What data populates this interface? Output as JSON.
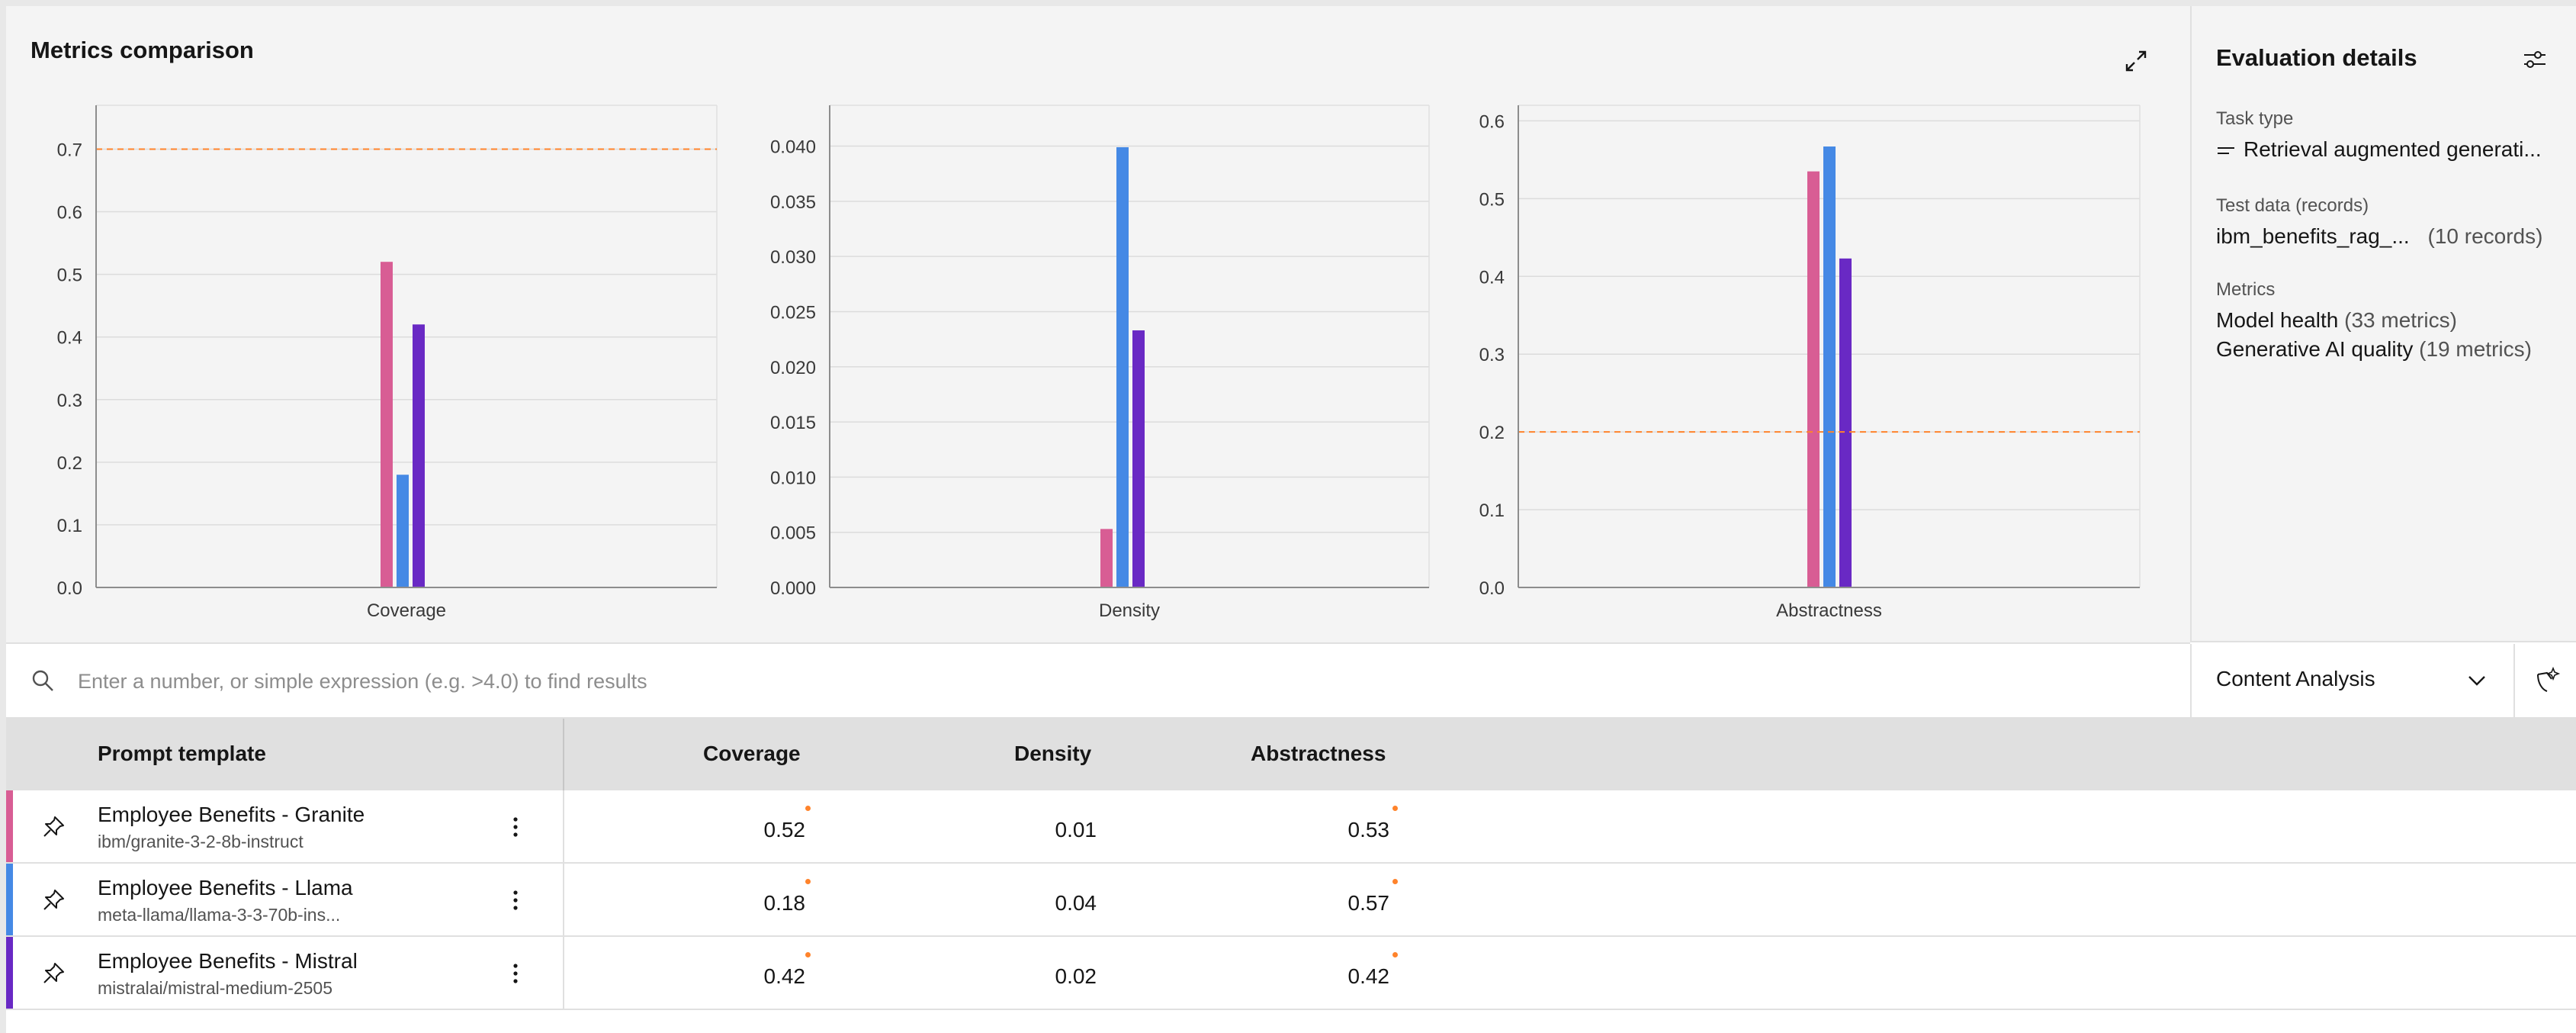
{
  "metrics_panel": {
    "title": "Metrics comparison"
  },
  "chart_data": [
    {
      "type": "bar",
      "categories": [
        "Coverage"
      ],
      "series": [
        {
          "name": "Employee Benefits - Granite",
          "values": [
            0.52
          ],
          "color": "#d85d94"
        },
        {
          "name": "Employee Benefits - Llama",
          "values": [
            0.18
          ],
          "color": "#4589e5"
        },
        {
          "name": "Employee Benefits - Mistral",
          "values": [
            0.42
          ],
          "color": "#6929c4"
        }
      ],
      "ylim": [
        0,
        0.77
      ],
      "yticks": [
        0.0,
        0.1,
        0.2,
        0.3,
        0.4,
        0.5,
        0.6,
        0.7
      ],
      "tick_decimals": 1,
      "threshold": 0.7,
      "threshold_color": "#ff832b",
      "xlabel": "Coverage",
      "grid": true
    },
    {
      "type": "bar",
      "categories": [
        "Density"
      ],
      "series": [
        {
          "name": "Employee Benefits - Granite",
          "values": [
            0.0053
          ],
          "color": "#d85d94"
        },
        {
          "name": "Employee Benefits - Llama",
          "values": [
            0.0399
          ],
          "color": "#4589e5"
        },
        {
          "name": "Employee Benefits - Mistral",
          "values": [
            0.0233
          ],
          "color": "#6929c4"
        }
      ],
      "ylim": [
        0,
        0.0437
      ],
      "yticks": [
        0.0,
        0.005,
        0.01,
        0.015,
        0.02,
        0.025,
        0.03,
        0.035,
        0.04
      ],
      "tick_decimals": 3,
      "threshold": null,
      "xlabel": "Density",
      "grid": true
    },
    {
      "type": "bar",
      "categories": [
        "Abstractness"
      ],
      "series": [
        {
          "name": "Employee Benefits - Granite",
          "values": [
            0.535
          ],
          "color": "#d85d94"
        },
        {
          "name": "Employee Benefits - Llama",
          "values": [
            0.567
          ],
          "color": "#4589e5"
        },
        {
          "name": "Employee Benefits - Mistral",
          "values": [
            0.423
          ],
          "color": "#6929c4"
        }
      ],
      "ylim": [
        0,
        0.62
      ],
      "yticks": [
        0.0,
        0.1,
        0.2,
        0.3,
        0.4,
        0.5,
        0.6
      ],
      "tick_decimals": 1,
      "threshold": 0.2,
      "threshold_color": "#ff832b",
      "xlabel": "Abstractness",
      "grid": true
    }
  ],
  "details": {
    "title": "Evaluation details",
    "task_type_label": "Task type",
    "task_type_value": "Retrieval augmented generati...",
    "test_data_label": "Test data (records)",
    "test_data_file": "ibm_benefits_rag_...",
    "test_data_count": "(10 records)",
    "metrics_label": "Metrics",
    "metric_1_name": "Model health",
    "metric_1_count": "(33 metrics)",
    "metric_2_name": "Generative AI quality",
    "metric_2_count": "(19 metrics)"
  },
  "search": {
    "placeholder": "Enter a number, or simple expression (e.g. >4.0) to find results",
    "value": ""
  },
  "filter_dropdown": {
    "selected": "Content Analysis"
  },
  "table": {
    "headers": {
      "prompt": "Prompt template",
      "coverage": "Coverage",
      "density": "Density",
      "abstractness": "Abstractness"
    },
    "rows": [
      {
        "name": "Employee Benefits - Granite",
        "model": "ibm/granite-3-2-8b-instruct",
        "color": "#d85d94",
        "coverage": "0.52",
        "density": "0.01",
        "abstractness": "0.53"
      },
      {
        "name": "Employee Benefits - Llama",
        "model": "meta-llama/llama-3-3-70b-ins...",
        "color": "#4589e5",
        "coverage": "0.18",
        "density": "0.04",
        "abstractness": "0.57"
      },
      {
        "name": "Employee Benefits - Mistral",
        "model": "mistralai/mistral-medium-2505",
        "color": "#6929c4",
        "coverage": "0.42",
        "density": "0.02",
        "abstractness": "0.42"
      }
    ]
  }
}
